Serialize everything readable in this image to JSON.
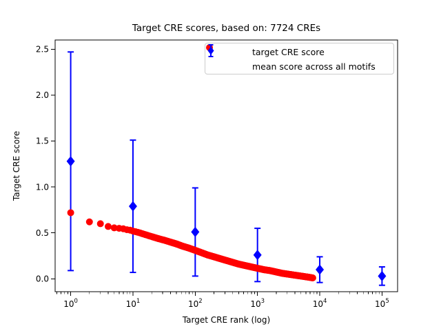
{
  "chart": {
    "title": "Target CRE scores, based on: 7724 CREs",
    "xlabel": "Target CRE rank (log)",
    "ylabel": "Target CRE score"
  },
  "legend": {
    "items": [
      {
        "label": "target CRE score",
        "marker": "circle",
        "color": "#ff0000"
      },
      {
        "label": "mean score across all motifs",
        "marker": "diamond-with-errorbar",
        "color": "#0000ff"
      }
    ]
  },
  "chart_data": {
    "type": "scatter",
    "title": "Target CRE scores, based on: 7724 CREs",
    "xlabel": "Target CRE rank (log)",
    "ylabel": "Target CRE score",
    "x_scale": "log",
    "y_scale": "linear",
    "xlim": [
      0.5623,
      177828
    ],
    "ylim": [
      -0.14,
      2.6
    ],
    "grid": false,
    "legend_position": "upper right",
    "total_ranks": 7724,
    "x_ticks": [
      {
        "value": 1,
        "base": "10",
        "exp": "0"
      },
      {
        "value": 10,
        "base": "10",
        "exp": "1"
      },
      {
        "value": 100,
        "base": "10",
        "exp": "2"
      },
      {
        "value": 1000,
        "base": "10",
        "exp": "3"
      },
      {
        "value": 10000,
        "base": "10",
        "exp": "4"
      },
      {
        "value": 100000,
        "base": "10",
        "exp": "5"
      }
    ],
    "y_ticks": [
      {
        "value": 0.0,
        "label": "0.0"
      },
      {
        "value": 0.5,
        "label": "0.5"
      },
      {
        "value": 1.0,
        "label": "1.0"
      },
      {
        "value": 1.5,
        "label": "1.5"
      },
      {
        "value": 2.0,
        "label": "2.0"
      },
      {
        "value": 2.5,
        "label": "2.5"
      }
    ],
    "series": [
      {
        "name": "target CRE score",
        "type": "scatter",
        "marker": "circle",
        "color": "#ff0000",
        "points": [
          [
            1,
            0.72
          ],
          [
            2,
            0.62
          ],
          [
            3,
            0.6
          ],
          [
            4,
            0.57
          ],
          [
            5,
            0.555
          ],
          [
            6,
            0.55
          ],
          [
            7,
            0.545
          ],
          [
            8,
            0.535
          ],
          [
            9,
            0.53
          ],
          [
            10,
            0.52
          ],
          [
            13,
            0.5
          ],
          [
            16,
            0.48
          ],
          [
            20,
            0.46
          ],
          [
            25,
            0.44
          ],
          [
            32,
            0.42
          ],
          [
            40,
            0.4
          ],
          [
            50,
            0.38
          ],
          [
            63,
            0.355
          ],
          [
            79,
            0.335
          ],
          [
            100,
            0.31
          ],
          [
            126,
            0.285
          ],
          [
            158,
            0.26
          ],
          [
            200,
            0.24
          ],
          [
            251,
            0.22
          ],
          [
            316,
            0.2
          ],
          [
            398,
            0.18
          ],
          [
            501,
            0.16
          ],
          [
            631,
            0.145
          ],
          [
            794,
            0.13
          ],
          [
            1000,
            0.115
          ],
          [
            1259,
            0.1
          ],
          [
            1585,
            0.09
          ],
          [
            1995,
            0.075
          ],
          [
            2512,
            0.06
          ],
          [
            3162,
            0.05
          ],
          [
            3981,
            0.04
          ],
          [
            5012,
            0.03
          ],
          [
            6310,
            0.02
          ],
          [
            7724,
            0.01
          ]
        ]
      },
      {
        "name": "mean score across all motifs",
        "type": "errorbar",
        "marker": "diamond",
        "color": "#0000ff",
        "points": [
          {
            "x": 1,
            "y": 1.28,
            "err": 1.19
          },
          {
            "x": 10,
            "y": 0.79,
            "err": 0.72
          },
          {
            "x": 100,
            "y": 0.51,
            "err": 0.48
          },
          {
            "x": 1000,
            "y": 0.26,
            "err": 0.29
          },
          {
            "x": 10000,
            "y": 0.1,
            "err": 0.14
          },
          {
            "x": 100000,
            "y": 0.03,
            "err": 0.1
          }
        ]
      }
    ]
  }
}
